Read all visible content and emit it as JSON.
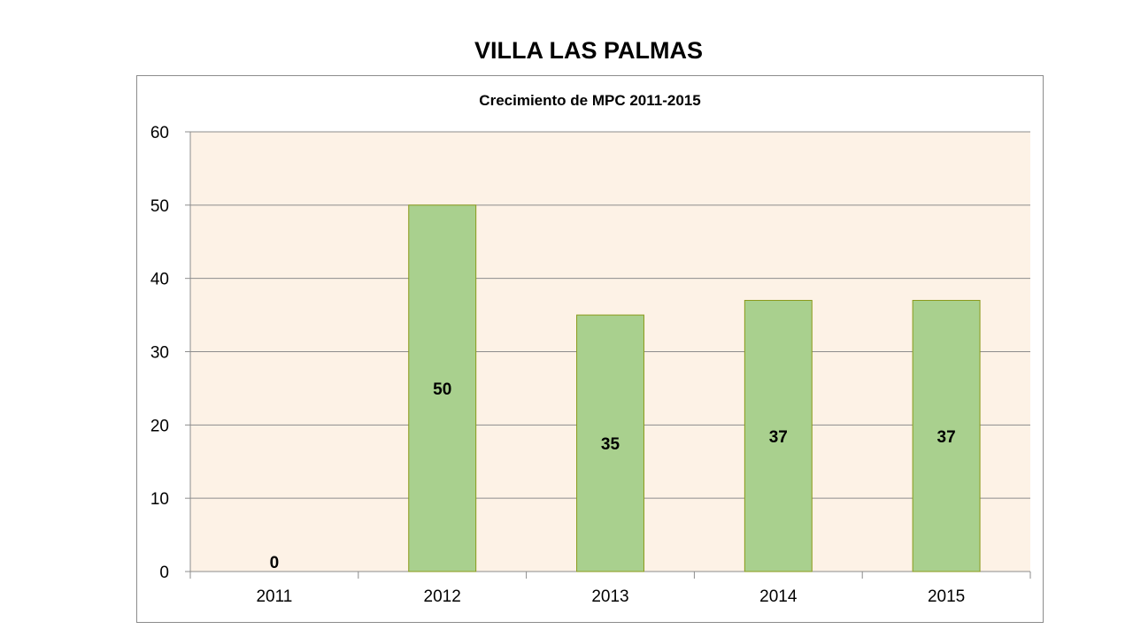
{
  "page": {
    "title": "VILLA LAS PALMAS"
  },
  "colors": {
    "plot_background": "#fdf2e6",
    "bar_fill": "#a9d08e",
    "bar_border": "#8a9a1a",
    "gridline": "#8c8c8c"
  },
  "chart_data": {
    "type": "bar",
    "title": "Crecimiento de MPC 2011-2015",
    "xlabel": "",
    "ylabel": "",
    "categories": [
      "2011",
      "2012",
      "2013",
      "2014",
      "2015"
    ],
    "values": [
      0,
      50,
      35,
      37,
      37
    ],
    "data_labels": [
      "0",
      "50",
      "35",
      "37",
      "37"
    ],
    "ylim": [
      0,
      60
    ],
    "yticks": [
      0,
      10,
      20,
      30,
      40,
      50,
      60
    ],
    "grid": true,
    "legend": "none"
  }
}
